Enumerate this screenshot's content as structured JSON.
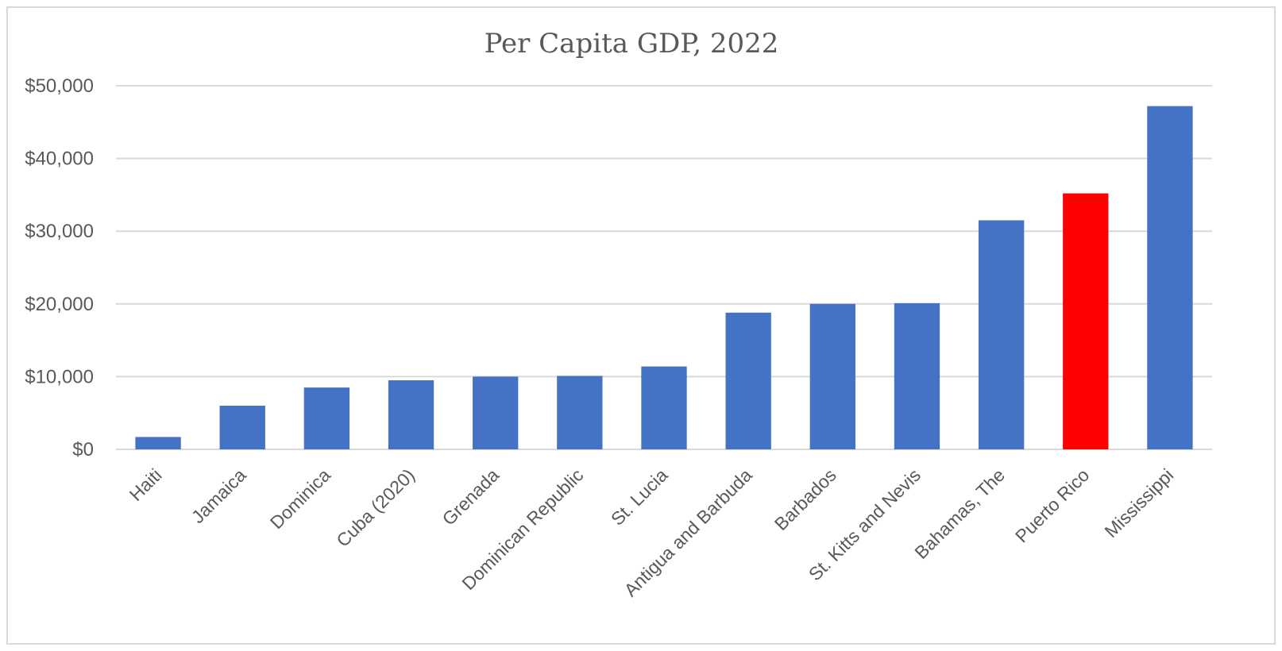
{
  "chart_data": {
    "type": "bar",
    "title": "Per Capita GDP, 2022",
    "xlabel": "",
    "ylabel": "",
    "categories": [
      "Haiti",
      "Jamaica",
      "Dominica",
      "Cuba (2020)",
      "Grenada",
      "Dominican Republic",
      "St. Lucia",
      "Antigua and Barbuda",
      "Barbados",
      "St. Kitts and Nevis",
      "Bahamas, The",
      "Puerto Rico",
      "Mississippi"
    ],
    "values": [
      1700,
      6000,
      8500,
      9500,
      10000,
      10100,
      11400,
      18800,
      20000,
      20100,
      31500,
      35200,
      47200
    ],
    "bar_colors": [
      "#4472c4",
      "#4472c4",
      "#4472c4",
      "#4472c4",
      "#4472c4",
      "#4472c4",
      "#4472c4",
      "#4472c4",
      "#4472c4",
      "#4472c4",
      "#4472c4",
      "#ff0000",
      "#4472c4"
    ],
    "yticks": [
      0,
      10000,
      20000,
      30000,
      40000,
      50000
    ],
    "ytick_labels": [
      "$0",
      "$10,000",
      "$20,000",
      "$30,000",
      "$40,000",
      "$50,000"
    ],
    "ylim": [
      0,
      50000
    ],
    "grid": true,
    "legend": "none",
    "colors": {
      "bar": "#4472c4",
      "highlight": "#ff0000",
      "grid": "#d9d9d9",
      "text": "#595959"
    }
  }
}
